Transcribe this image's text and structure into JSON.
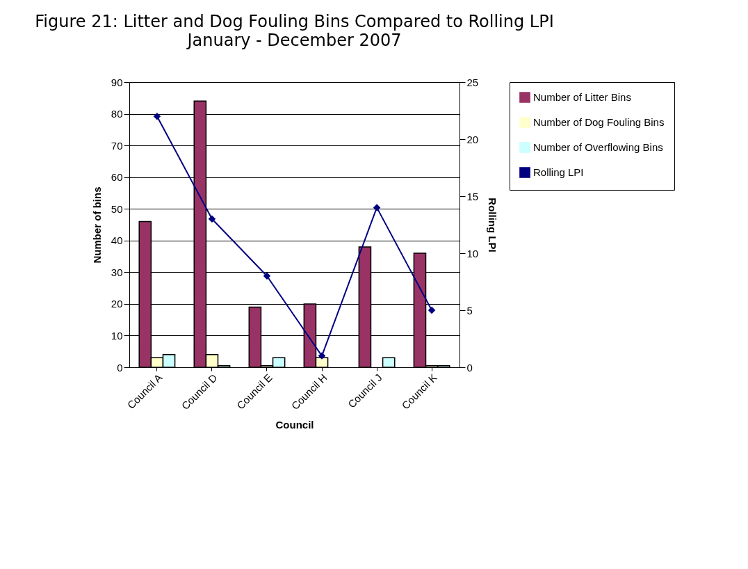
{
  "chart_data": {
    "type": "bar",
    "title": "Figure 21: Litter and Dog Fouling Bins Compared to Rolling LPI",
    "subtitle": "January - December 2007",
    "categories": [
      "Council A",
      "Council D",
      "Council E",
      "Council H",
      "Council J",
      "Council K"
    ],
    "series": [
      {
        "name": "Number of Litter Bins",
        "color": "#993366",
        "values": [
          46,
          84,
          19,
          20,
          38,
          36
        ]
      },
      {
        "name": "Number of Dog Fouling Bins",
        "color": "#ffffcc",
        "values": [
          3,
          4,
          0.5,
          3,
          0,
          0.5
        ]
      },
      {
        "name": "Number of Overflowing Bins",
        "color": "#ccffff",
        "values": [
          4,
          0.5,
          3,
          0,
          3,
          0.5
        ]
      },
      {
        "name": "Rolling LPI",
        "color": "#000080",
        "type": "line",
        "axis": "y2",
        "values": [
          22,
          13,
          8,
          1,
          14,
          5
        ]
      }
    ],
    "xlabel": "Council",
    "ylabel": "Number of bins",
    "y2label": "Rolling LPI",
    "ylim": [
      0,
      90
    ],
    "yticks": [
      0,
      10,
      20,
      30,
      40,
      50,
      60,
      70,
      80,
      90
    ],
    "y2lim": [
      0,
      25
    ],
    "y2ticks": [
      0,
      5,
      10,
      15,
      20,
      25
    ],
    "grid": "y",
    "legend": "right",
    "marker": "diamond"
  }
}
